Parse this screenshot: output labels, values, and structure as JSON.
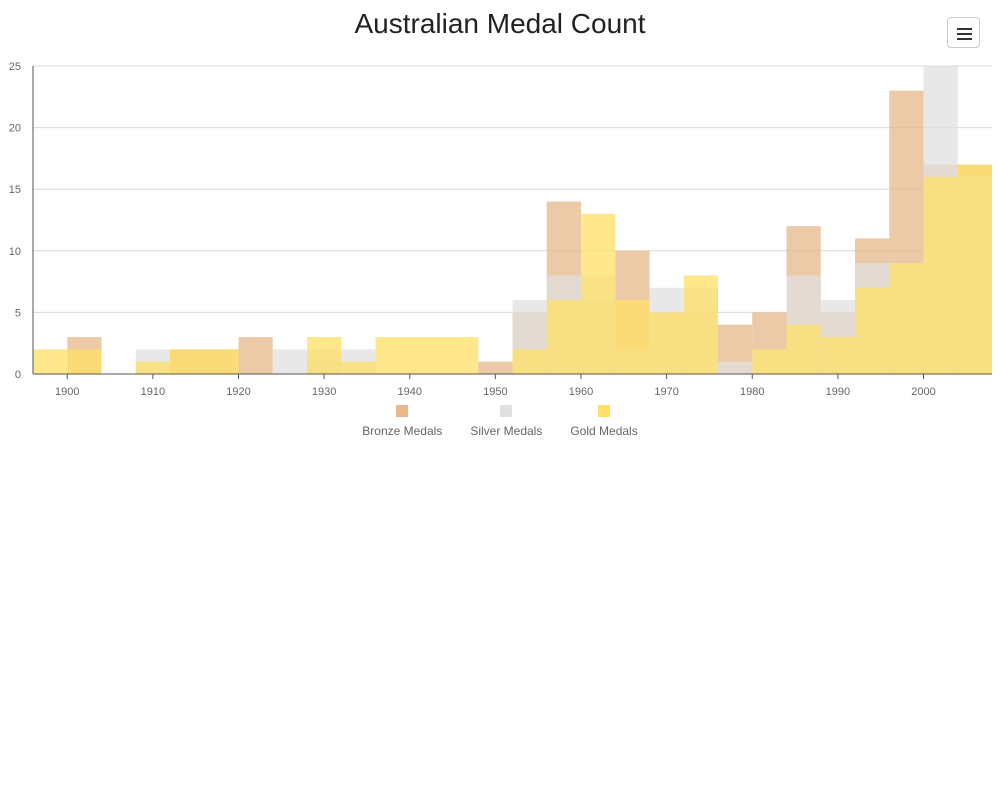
{
  "chart_data": {
    "type": "bar",
    "title": "Australian Medal Count",
    "x": [
      1896,
      1900,
      1904,
      1908,
      1912,
      1920,
      1924,
      1928,
      1932,
      1936,
      1948,
      1952,
      1956,
      1960,
      1964,
      1968,
      1972,
      1976,
      1980,
      1984,
      1988,
      1992,
      1996,
      2000,
      2004
    ],
    "xlim": [
      1896,
      2008
    ],
    "x_ticks": [
      "1900",
      "1910",
      "1920",
      "1930",
      "1940",
      "1950",
      "1960",
      "1970",
      "1980",
      "1990",
      "2000"
    ],
    "ylim": [
      0,
      25
    ],
    "y_ticks": [
      "0",
      "5",
      "10",
      "15",
      "20",
      "25"
    ],
    "grid": true,
    "legend_position": "bottom",
    "series": [
      {
        "name": "Bronze Medals",
        "color": "#e6b88a",
        "values": [
          0,
          3,
          0,
          0,
          2,
          3,
          0,
          1,
          0,
          0,
          1,
          5,
          14,
          6,
          10,
          5,
          5,
          4,
          5,
          12,
          5,
          11,
          23,
          17,
          17
        ]
      },
      {
        "name": "Silver Medals",
        "color": "#e0e0e0",
        "values": [
          0,
          0,
          0,
          2,
          0,
          0,
          2,
          2,
          2,
          0,
          0,
          6,
          8,
          8,
          2,
          7,
          7,
          1,
          2,
          8,
          6,
          9,
          9,
          25,
          16
        ]
      },
      {
        "name": "Gold Medals",
        "color": "#ffe066",
        "values": [
          2,
          2,
          0,
          1,
          2,
          0,
          0,
          3,
          1,
          3,
          0,
          2,
          6,
          13,
          6,
          5,
          8,
          0,
          2,
          4,
          3,
          7,
          9,
          16,
          17
        ]
      }
    ]
  },
  "ui": {
    "menu_icon": "hamburger-icon"
  }
}
